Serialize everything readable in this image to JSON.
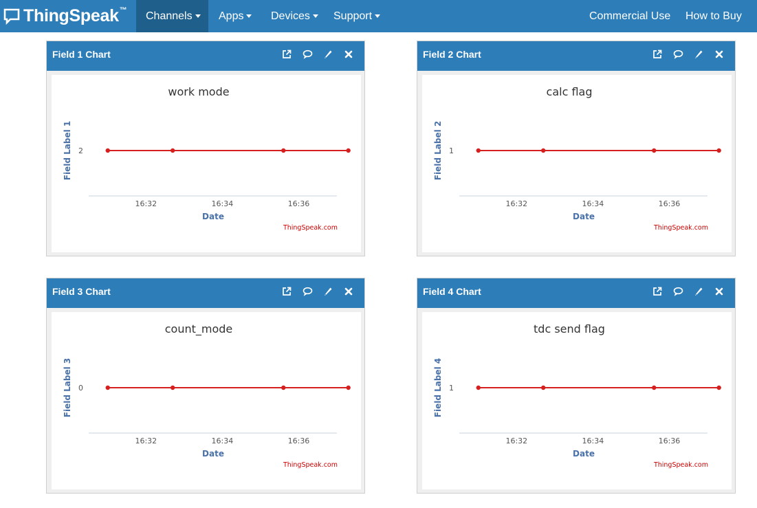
{
  "navbar": {
    "brand": "ThingSpeak",
    "brand_tm": "™",
    "items": [
      {
        "label": "Channels",
        "active": true,
        "dropdown": true
      },
      {
        "label": "Apps",
        "active": false,
        "dropdown": true
      },
      {
        "label": "Devices",
        "active": false,
        "dropdown": true
      },
      {
        "label": "Support",
        "active": false,
        "dropdown": true
      }
    ],
    "right_items": [
      {
        "label": "Commercial Use"
      },
      {
        "label": "How to Buy"
      }
    ]
  },
  "panels": [
    {
      "header": "Field 1 Chart",
      "title": "work mode",
      "ylabel": "Field Label 1",
      "xlabel": "Date",
      "credit": "ThingSpeak.com",
      "ytick": "2"
    },
    {
      "header": "Field 2 Chart",
      "title": "calc flag",
      "ylabel": "Field Label 2",
      "xlabel": "Date",
      "credit": "ThingSpeak.com",
      "ytick": "1"
    },
    {
      "header": "Field 3 Chart",
      "title": "count_mode",
      "ylabel": "Field Label 3",
      "xlabel": "Date",
      "credit": "ThingSpeak.com",
      "ytick": "0"
    },
    {
      "header": "Field 4 Chart",
      "title": "tdc send flag",
      "ylabel": "Field Label 4",
      "xlabel": "Date",
      "credit": "ThingSpeak.com",
      "ytick": "1"
    }
  ],
  "panel_actions": [
    "external-link-icon",
    "comment-icon",
    "pencil-icon",
    "close-icon"
  ],
  "colors": {
    "nav": "#2c7db8",
    "nav_active": "#1f5f8c",
    "line": "#d62020",
    "axis_title": "#4a72a8",
    "chart_title": "#333333"
  },
  "chart_data": [
    {
      "type": "line",
      "title": "work mode",
      "xlabel": "Date",
      "ylabel": "Field Label 1",
      "x_ticks": [
        "16:32",
        "16:34",
        "16:36"
      ],
      "series": [
        {
          "x": [
            "16:31.0",
            "16:32.7",
            "16:35.6",
            "16:37.3"
          ],
          "values": [
            2,
            2,
            2,
            2
          ]
        }
      ]
    },
    {
      "type": "line",
      "title": "calc flag",
      "xlabel": "Date",
      "ylabel": "Field Label 2",
      "x_ticks": [
        "16:32",
        "16:34",
        "16:36"
      ],
      "series": [
        {
          "x": [
            "16:31.0",
            "16:32.7",
            "16:35.6",
            "16:37.3"
          ],
          "values": [
            1,
            1,
            1,
            1
          ]
        }
      ]
    },
    {
      "type": "line",
      "title": "count_mode",
      "xlabel": "Date",
      "ylabel": "Field Label 3",
      "x_ticks": [
        "16:32",
        "16:34",
        "16:36"
      ],
      "series": [
        {
          "x": [
            "16:31.0",
            "16:32.7",
            "16:35.6",
            "16:37.3"
          ],
          "values": [
            0,
            0,
            0,
            0
          ]
        }
      ]
    },
    {
      "type": "line",
      "title": "tdc send flag",
      "xlabel": "Date",
      "ylabel": "Field Label 4",
      "x_ticks": [
        "16:32",
        "16:34",
        "16:36"
      ],
      "series": [
        {
          "x": [
            "16:31.0",
            "16:32.7",
            "16:35.6",
            "16:37.3"
          ],
          "values": [
            1,
            1,
            1,
            1
          ]
        }
      ]
    }
  ]
}
